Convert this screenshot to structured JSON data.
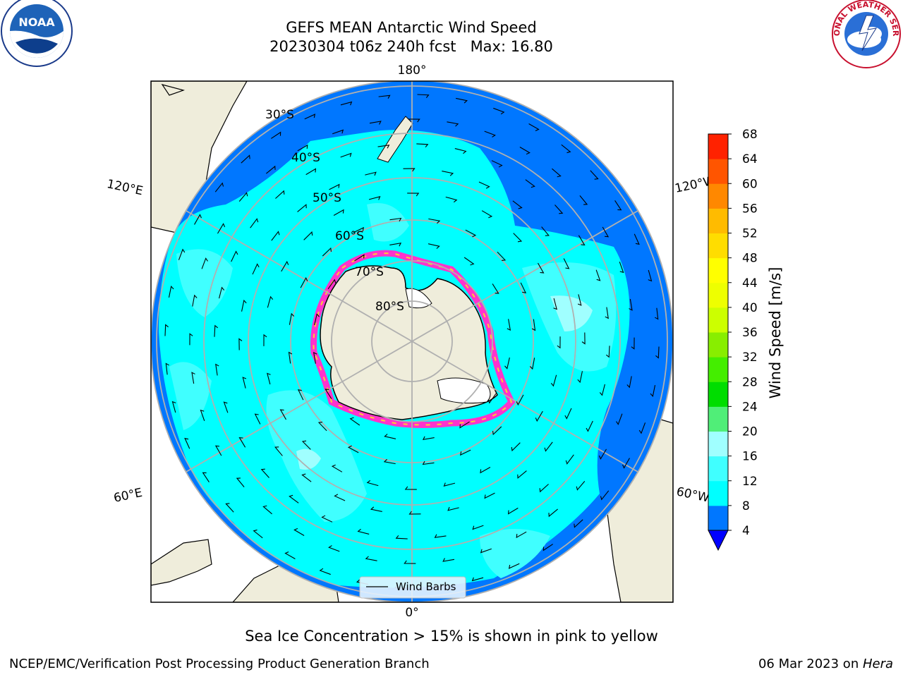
{
  "header": {
    "title_line1": "GEFS MEAN Antarctic Wind Speed",
    "title_line2": "20230304 t06z 240h fcst   Max: 16.80"
  },
  "logos": {
    "left": {
      "icon": "noaa-logo",
      "text": "NOAA"
    },
    "right": {
      "icon": "nws-logo",
      "ring_text": "NATIONAL WEATHER SERVICE"
    }
  },
  "map": {
    "projection": "south-polar-stereographic",
    "lon_labels": {
      "top": "180°",
      "bottom": "0°",
      "left_upper": "120°E",
      "left_lower": "60°E",
      "right_upper": "120°W",
      "right_lower": "60°W"
    },
    "lat_labels": [
      "30°S",
      "40°S",
      "50°S",
      "60°S",
      "70°S",
      "80°S"
    ],
    "legend_label": "Wind Barbs"
  },
  "colorbar": {
    "label": "Wind Speed [m/s]",
    "ticks": [
      "4",
      "8",
      "12",
      "16",
      "20",
      "24",
      "28",
      "32",
      "36",
      "40",
      "44",
      "48",
      "52",
      "56",
      "60",
      "64",
      "68"
    ],
    "colors": [
      "#0077ff",
      "#00ffff",
      "#40ffff",
      "#a0ffff",
      "#50ee78",
      "#00dd00",
      "#44ee00",
      "#88ee00",
      "#ccff00",
      "#eeff00",
      "#ffff00",
      "#ffdd00",
      "#ffbb00",
      "#ff8800",
      "#ff5500",
      "#ff2200"
    ],
    "under_color": "#0000ff"
  },
  "footer": {
    "note": "Sea Ice Concentration > 15% is shown in pink to yellow",
    "left": "NCEP/EMC/Verification Post Processing Product Generation Branch",
    "right_date": "06 Mar 2023 on ",
    "right_host": "Hera"
  }
}
